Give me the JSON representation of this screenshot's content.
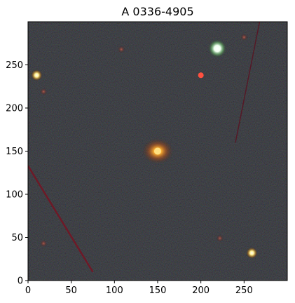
{
  "figure": {
    "title": "A 0336-4905"
  },
  "axes": {
    "x_ticks": [
      {
        "value": 0,
        "label": "0"
      },
      {
        "value": 50,
        "label": "50"
      },
      {
        "value": 100,
        "label": "100"
      },
      {
        "value": 150,
        "label": "150"
      },
      {
        "value": 200,
        "label": "200"
      },
      {
        "value": 250,
        "label": "250"
      }
    ],
    "y_ticks": [
      {
        "value": 0,
        "label": "0"
      },
      {
        "value": 50,
        "label": "50"
      },
      {
        "value": 100,
        "label": "100"
      },
      {
        "value": 150,
        "label": "150"
      },
      {
        "value": 200,
        "label": "200"
      },
      {
        "value": 250,
        "label": "250"
      }
    ],
    "x_range": [
      0,
      300
    ],
    "y_range": [
      0,
      300
    ]
  },
  "image": {
    "background_color": "#0b0f0b",
    "sources": [
      {
        "name": "central-galaxy",
        "x": 150,
        "y": 150,
        "color": "#ff9a20"
      },
      {
        "name": "bright-star-top-right",
        "x": 219,
        "y": 269,
        "color": "#eaffea"
      },
      {
        "name": "star-left",
        "x": 10,
        "y": 238,
        "color": "#ffe070"
      },
      {
        "name": "star-lower-right",
        "x": 259,
        "y": 32,
        "color": "#ffffc0"
      },
      {
        "name": "small-red-source",
        "x": 200,
        "y": 238,
        "color": "#ff5040"
      },
      {
        "name": "faint-source-1",
        "x": 18,
        "y": 219,
        "color": "#a04040"
      },
      {
        "name": "faint-source-2",
        "x": 108,
        "y": 268,
        "color": "#804040"
      },
      {
        "name": "faint-source-3",
        "x": 250,
        "y": 282,
        "color": "#a08040"
      },
      {
        "name": "faint-source-4",
        "x": 18,
        "y": 43,
        "color": "#805050"
      },
      {
        "name": "faint-source-5",
        "x": 222,
        "y": 49,
        "color": "#806040"
      }
    ],
    "streaks": [
      {
        "name": "satellite-trail-lower-left",
        "x1": 0,
        "y1": 133,
        "x2": 75,
        "y2": 10,
        "color": "#7a1020"
      },
      {
        "name": "satellite-trail-upper-right",
        "x1": 268,
        "y1": 300,
        "x2": 240,
        "y2": 160,
        "color": "#5a1020"
      }
    ]
  }
}
